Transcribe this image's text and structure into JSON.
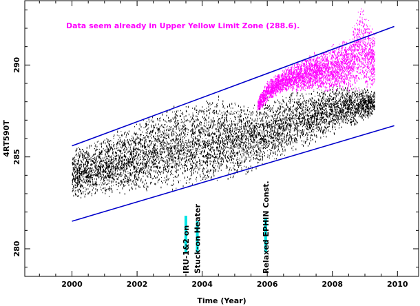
{
  "chart_data": {
    "type": "scatter",
    "title": "",
    "xlabel": "Time (Year)",
    "ylabel": "4RT590T",
    "xlim": [
      1998.55,
      2010.65
    ],
    "ylim": [
      278.5,
      293.5
    ],
    "xticks": [
      2000,
      2002,
      2004,
      2006,
      2008,
      2010
    ],
    "xtick_labels": [
      "2000",
      "2002",
      "2004",
      "2006",
      "2008",
      "2010"
    ],
    "yticks": [
      280,
      285,
      290
    ],
    "ytick_labels": [
      "280",
      "285",
      "290"
    ],
    "annotation": {
      "text": "Data seem already in Upper Yellow  Limit Zone (288.6).",
      "color": "#ff00ff"
    },
    "trend_lines": [
      {
        "name": "upper",
        "x": [
          2000.0,
          2009.9
        ],
        "y": [
          285.6,
          292.1
        ],
        "color": "#0000cc"
      },
      {
        "name": "lower",
        "x": [
          2000.0,
          2009.9
        ],
        "y": [
          281.5,
          286.7
        ],
        "color": "#0000cc"
      }
    ],
    "events": [
      {
        "label": "IRU-1&2 on",
        "x": 2003.5,
        "marker_color": "#00e5e5",
        "marker_y": [
          279.8,
          281.8
        ]
      },
      {
        "label": "Stuck-on Heater",
        "x": 2003.85,
        "marker_color": "#00e5e5",
        "marker_y": [
          279.8,
          281.5
        ]
      },
      {
        "label": "Relaxed EPHIN Const.",
        "x": 2005.95,
        "marker_color": "#00e5e5",
        "marker_y": [
          279.8,
          281.7
        ]
      }
    ],
    "series": [
      {
        "color": "#000000",
        "x": [
          2000.0,
          2000.5,
          2001.0,
          2001.5,
          2002.0,
          2002.5,
          2003.0,
          2003.5,
          2004.0,
          2004.5,
          2005.0,
          2005.5,
          2006.0,
          2006.5,
          2007.0,
          2007.5,
          2008.0,
          2008.5,
          2009.0,
          2009.3
        ],
        "y_low": [
          282.7,
          282.8,
          282.8,
          282.9,
          283.0,
          283.1,
          283.2,
          283.3,
          283.4,
          283.6,
          283.8,
          284.2,
          284.6,
          285.0,
          285.4,
          285.8,
          286.2,
          286.6,
          287.0,
          287.4
        ],
        "y_high": [
          285.6,
          285.8,
          286.2,
          286.6,
          287.0,
          287.4,
          287.8,
          288.0,
          288.2,
          288.4,
          288.2,
          288.0,
          288.4,
          288.6,
          288.8,
          288.8,
          289.0,
          289.0,
          288.8,
          288.6
        ]
      },
      {
        "color": "#ff00ff",
        "x": [
          2005.7,
          2006.0,
          2006.5,
          2007.0,
          2007.5,
          2008.0,
          2008.5,
          2008.9,
          2009.3
        ],
        "y_low": [
          287.5,
          288.0,
          288.6,
          288.6,
          288.6,
          288.6,
          288.6,
          288.6,
          288.6
        ],
        "y_high": [
          288.2,
          289.2,
          289.8,
          290.3,
          290.8,
          291.2,
          291.6,
          293.6,
          291.8
        ]
      }
    ]
  }
}
